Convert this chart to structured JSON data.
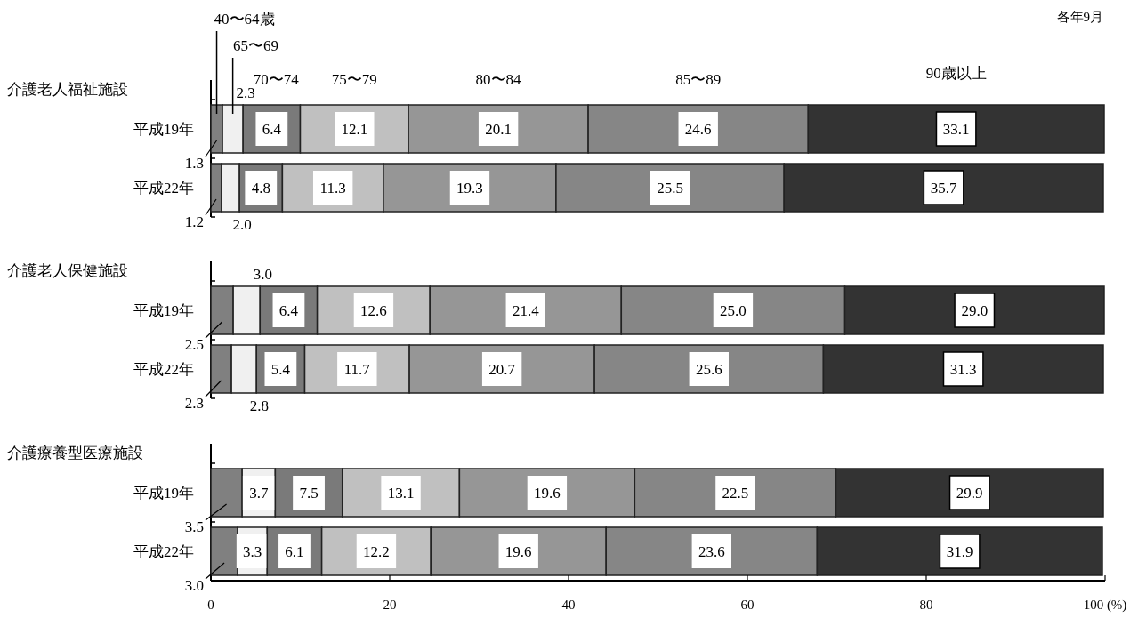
{
  "chart_data": [
    {
      "type": "bar",
      "orientation": "horizontal",
      "stacked": true,
      "title": "介護老人福祉施設",
      "annotations": [
        "各年9月"
      ],
      "categories": [
        "平成19年",
        "平成22年"
      ],
      "legend": "top",
      "xlim": [
        0,
        100
      ],
      "tick_labels": "y",
      "series": [
        {
          "name": "40〜64歳",
          "color": "#808080",
          "values": [
            1.3,
            1.2
          ],
          "value_labels": [
            "1.3",
            "1.2"
          ]
        },
        {
          "name": "65〜69",
          "color": "#f0f0f0",
          "values": [
            2.3,
            2.0
          ],
          "value_labels": [
            "2.3",
            "2.0"
          ]
        },
        {
          "name": "70〜74",
          "color": "#7a7a7a",
          "values": [
            6.4,
            4.8
          ],
          "value_labels": [
            "6.4",
            "4.8"
          ]
        },
        {
          "name": "75〜79",
          "color": "#c0c0c0",
          "values": [
            12.1,
            11.3
          ],
          "value_labels": [
            "12.1",
            "11.3"
          ]
        },
        {
          "name": "80〜84",
          "color": "#969696",
          "values": [
            20.1,
            19.3
          ],
          "value_labels": [
            "20.1",
            "19.3"
          ]
        },
        {
          "name": "85〜89",
          "color": "#868686",
          "values": [
            24.6,
            25.5
          ],
          "value_labels": [
            "24.6",
            "25.5"
          ]
        },
        {
          "name": "90歳以上",
          "color": "#333333",
          "values": [
            33.1,
            35.7
          ],
          "value_labels": [
            "33.1",
            "35.7"
          ]
        }
      ]
    },
    {
      "type": "bar",
      "orientation": "horizontal",
      "stacked": true,
      "title": "介護老人保健施設",
      "categories": [
        "平成19年",
        "平成22年"
      ],
      "xlim": [
        0,
        100
      ],
      "tick_labels": "y",
      "series": [
        {
          "color": "#808080",
          "values": [
            2.5,
            2.3
          ],
          "value_labels": [
            "2.5",
            "2.3"
          ]
        },
        {
          "color": "#f0f0f0",
          "values": [
            3.0,
            2.8
          ],
          "value_labels": [
            "3.0",
            "2.8"
          ]
        },
        {
          "color": "#7a7a7a",
          "values": [
            6.4,
            5.4
          ],
          "value_labels": [
            "6.4",
            "5.4"
          ]
        },
        {
          "color": "#c0c0c0",
          "values": [
            12.6,
            11.7
          ],
          "value_labels": [
            "12.6",
            "11.7"
          ]
        },
        {
          "color": "#969696",
          "values": [
            21.4,
            20.7
          ],
          "value_labels": [
            "21.4",
            "20.7"
          ]
        },
        {
          "color": "#868686",
          "values": [
            25.0,
            25.6
          ],
          "value_labels": [
            "25.0",
            "25.6"
          ]
        },
        {
          "color": "#333333",
          "values": [
            29.0,
            31.3
          ],
          "value_labels": [
            "29.0",
            "31.3"
          ]
        }
      ]
    },
    {
      "type": "bar",
      "orientation": "horizontal",
      "stacked": true,
      "title": "介護療養型医療施設",
      "categories": [
        "平成19年",
        "平成22年"
      ],
      "xlim": [
        0,
        100
      ],
      "xticks": [
        0,
        20,
        40,
        60,
        80,
        {
          "value": 100,
          "label": "100 (%)"
        }
      ],
      "series": [
        {
          "color": "#808080",
          "values": [
            3.5,
            3.0
          ],
          "value_labels": [
            "3.5",
            "3.0"
          ]
        },
        {
          "color": "#f0f0f0",
          "values": [
            3.7,
            3.3
          ],
          "value_labels": [
            "3.7",
            "3.3"
          ]
        },
        {
          "color": "#7a7a7a",
          "values": [
            7.5,
            6.1
          ],
          "value_labels": [
            "7.5",
            "6.1"
          ]
        },
        {
          "color": "#c0c0c0",
          "values": [
            13.1,
            12.2
          ],
          "value_labels": [
            "13.1",
            "12.2"
          ]
        },
        {
          "color": "#969696",
          "values": [
            19.6,
            19.6
          ],
          "value_labels": [
            "19.6",
            "19.6"
          ]
        },
        {
          "color": "#868686",
          "values": [
            22.5,
            23.6
          ],
          "value_labels": [
            "22.5",
            "23.6"
          ]
        },
        {
          "color": "#333333",
          "values": [
            29.9,
            31.9
          ],
          "value_labels": [
            "29.9",
            "31.9"
          ]
        }
      ]
    }
  ]
}
